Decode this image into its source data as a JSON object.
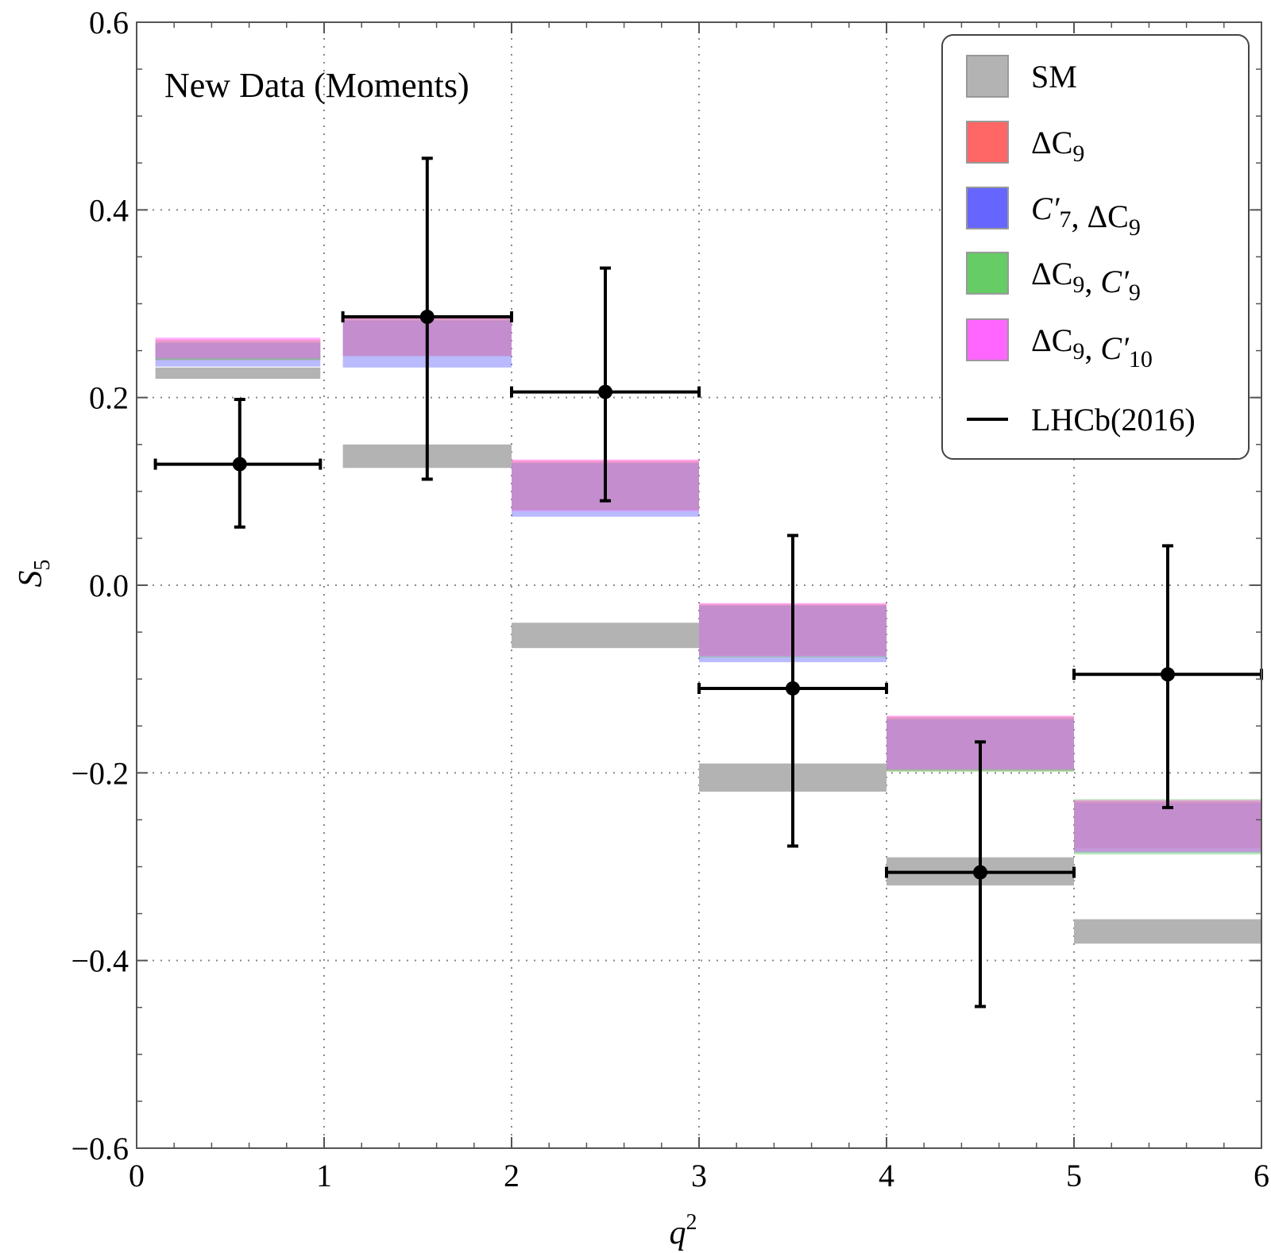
{
  "chart_data": {
    "type": "bar",
    "annotation": "New Data (Moments)",
    "xlabel": "q",
    "xlabel_sup": "2",
    "ylabel": "S",
    "ylabel_sub": "5",
    "xlim": [
      0,
      6
    ],
    "ylim": [
      -0.6,
      0.6
    ],
    "x_ticks": [
      "0",
      "1",
      "2",
      "3",
      "4",
      "5",
      "6"
    ],
    "y_ticks": [
      "−0.6",
      "−0.4",
      "−0.2",
      "0.0",
      "0.2",
      "0.4",
      "0.6"
    ],
    "grid": "dotted at major ticks",
    "legend_position": "top-right",
    "bins": [
      [
        0.1,
        0.98
      ],
      [
        1.1,
        2.0
      ],
      [
        2.0,
        3.0
      ],
      [
        3.0,
        4.0
      ],
      [
        4.0,
        5.0
      ],
      [
        5.0,
        6.0
      ]
    ],
    "series": [
      {
        "name": "SM",
        "color": "#b3b3b3",
        "bands": [
          [
            0.22,
            0.232
          ],
          [
            0.125,
            0.15
          ],
          [
            -0.067,
            -0.04
          ],
          [
            -0.22,
            -0.19
          ],
          [
            -0.32,
            -0.29
          ],
          [
            -0.382,
            -0.356
          ]
        ]
      },
      {
        "name": "ΔC9",
        "color": "#ff6666",
        "bands": [
          [
            0.24,
            0.262
          ],
          [
            0.245,
            0.286
          ],
          [
            0.08,
            0.133
          ],
          [
            -0.075,
            -0.02
          ],
          [
            -0.198,
            -0.14
          ],
          [
            -0.28,
            -0.23
          ]
        ]
      },
      {
        "name": "C′7, ΔC9",
        "color": "#6666ff",
        "bands": [
          [
            0.233,
            0.258
          ],
          [
            0.232,
            0.282
          ],
          [
            0.073,
            0.13
          ],
          [
            -0.082,
            -0.022
          ],
          [
            -0.197,
            -0.143
          ],
          [
            -0.285,
            -0.232
          ]
        ]
      },
      {
        "name": "ΔC9, C′9",
        "color": "#66cc66",
        "bands": [
          [
            0.24,
            0.26
          ],
          [
            0.244,
            0.284
          ],
          [
            0.08,
            0.131
          ],
          [
            -0.077,
            -0.021
          ],
          [
            -0.199,
            -0.141
          ],
          [
            -0.287,
            -0.228
          ]
        ]
      },
      {
        "name": "ΔC9, C′10",
        "color": "#ff66ff",
        "bands": [
          [
            0.242,
            0.264
          ],
          [
            0.244,
            0.286
          ],
          [
            0.079,
            0.134
          ],
          [
            -0.076,
            -0.019
          ],
          [
            -0.196,
            -0.139
          ],
          [
            -0.284,
            -0.229
          ]
        ]
      }
    ],
    "measurements": {
      "name": "LHCb(2016)",
      "color": "#000000",
      "points": [
        {
          "x": 0.55,
          "xlo": 0.1,
          "xhi": 0.98,
          "y": 0.129,
          "ylo": 0.062,
          "yhi": 0.198
        },
        {
          "x": 1.55,
          "xlo": 1.1,
          "xhi": 2.0,
          "y": 0.286,
          "ylo": 0.113,
          "yhi": 0.455
        },
        {
          "x": 2.5,
          "xlo": 2.0,
          "xhi": 3.0,
          "y": 0.206,
          "ylo": 0.09,
          "yhi": 0.338
        },
        {
          "x": 3.5,
          "xlo": 3.0,
          "xhi": 4.0,
          "y": -0.11,
          "ylo": -0.278,
          "yhi": 0.053
        },
        {
          "x": 4.5,
          "xlo": 4.0,
          "xhi": 5.0,
          "y": -0.306,
          "ylo": -0.449,
          "yhi": -0.167
        },
        {
          "x": 5.5,
          "xlo": 5.0,
          "xhi": 6.0,
          "y": -0.095,
          "ylo": -0.237,
          "yhi": 0.042
        }
      ]
    },
    "legend": [
      {
        "kind": "box",
        "color": "#b3b3b3",
        "parts": [
          [
            "r",
            "SM"
          ]
        ]
      },
      {
        "kind": "box",
        "color": "#ff6666",
        "parts": [
          [
            "r",
            "ΔC"
          ],
          [
            "sub",
            "9"
          ]
        ]
      },
      {
        "kind": "box",
        "color": "#6666ff",
        "parts": [
          [
            "i",
            "C"
          ],
          [
            "i",
            "′"
          ],
          [
            "sub",
            "7"
          ],
          [
            "r",
            ", ΔC"
          ],
          [
            "sub",
            "9"
          ]
        ]
      },
      {
        "kind": "box",
        "color": "#66cc66",
        "parts": [
          [
            "r",
            "ΔC"
          ],
          [
            "sub",
            "9"
          ],
          [
            "r",
            ", "
          ],
          [
            "i",
            "C"
          ],
          [
            "i",
            "′"
          ],
          [
            "sub",
            "9"
          ]
        ]
      },
      {
        "kind": "box",
        "color": "#ff66ff",
        "parts": [
          [
            "r",
            "ΔC"
          ],
          [
            "sub",
            "9"
          ],
          [
            "r",
            ", "
          ],
          [
            "i",
            "C"
          ],
          [
            "i",
            "′"
          ],
          [
            "sub",
            "10"
          ]
        ]
      },
      {
        "kind": "line",
        "color": "#000000",
        "parts": [
          [
            "r",
            "LHCb(2016)"
          ]
        ]
      }
    ]
  }
}
